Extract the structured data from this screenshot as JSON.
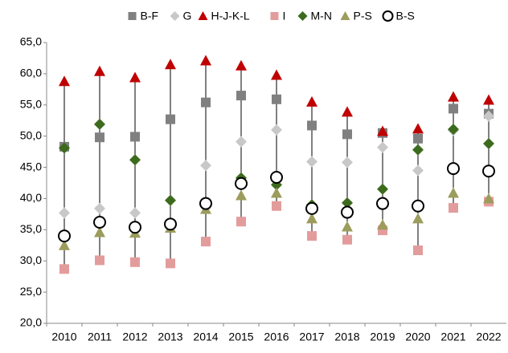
{
  "chart_data": {
    "type": "dot-range",
    "categories": [
      "2010",
      "2011",
      "2012",
      "2013",
      "2014",
      "2015",
      "2016",
      "2017",
      "2018",
      "2019",
      "2020",
      "2021",
      "2022"
    ],
    "series": [
      {
        "name": "B-F",
        "color": "#808080",
        "marker": "square",
        "values": [
          48.3,
          49.8,
          49.9,
          52.7,
          55.4,
          56.5,
          55.9,
          51.7,
          50.3,
          50.5,
          49.6,
          54.4,
          53.6
        ]
      },
      {
        "name": "G",
        "color": "#c8c8c8",
        "marker": "diamond",
        "values": [
          37.7,
          38.4,
          37.7,
          35.6,
          45.3,
          49.1,
          51.0,
          45.9,
          45.8,
          48.2,
          44.5,
          50.9,
          53.2
        ]
      },
      {
        "name": "H-J-K-L",
        "color": "#c00000",
        "marker": "triangle",
        "values": [
          58.8,
          60.4,
          59.4,
          61.5,
          62.1,
          61.3,
          59.8,
          55.5,
          53.9,
          50.8,
          51.2,
          56.3,
          55.8
        ]
      },
      {
        "name": "I",
        "color": "#e39c9c",
        "marker": "square",
        "values": [
          28.7,
          30.1,
          29.8,
          29.6,
          33.1,
          36.3,
          38.8,
          34.0,
          33.4,
          34.9,
          31.7,
          38.5,
          39.5
        ]
      },
      {
        "name": "M-N",
        "color": "#3d6b1e",
        "marker": "diamond",
        "values": [
          48.1,
          51.9,
          46.2,
          39.7,
          39.1,
          43.3,
          42.2,
          39.0,
          39.3,
          41.5,
          47.8,
          51.1,
          48.8
        ]
      },
      {
        "name": "P-S",
        "color": "#9c9c5c",
        "marker": "triangle",
        "values": [
          32.5,
          34.6,
          34.5,
          35.3,
          38.3,
          40.5,
          40.9,
          36.8,
          35.5,
          35.8,
          36.8,
          40.9,
          40.0
        ]
      },
      {
        "name": "B-S",
        "color": "#000000",
        "marker": "circle",
        "values": [
          34.0,
          36.2,
          35.4,
          35.9,
          39.2,
          42.4,
          43.4,
          38.4,
          37.8,
          39.2,
          38.8,
          44.8,
          44.4
        ]
      }
    ],
    "ylim": [
      20,
      65
    ],
    "yticks": [
      {
        "value": 20,
        "label": "20,0"
      },
      {
        "value": 25,
        "label": "25,0"
      },
      {
        "value": 30,
        "label": "30,0"
      },
      {
        "value": 35,
        "label": "35,0"
      },
      {
        "value": 40,
        "label": "40,0"
      },
      {
        "value": 45,
        "label": "45,0"
      },
      {
        "value": 50,
        "label": "50,0"
      },
      {
        "value": 55,
        "label": "55,0"
      },
      {
        "value": 60,
        "label": "60,0"
      },
      {
        "value": 65,
        "label": "65,0"
      }
    ],
    "legend": "top",
    "grid": false
  }
}
